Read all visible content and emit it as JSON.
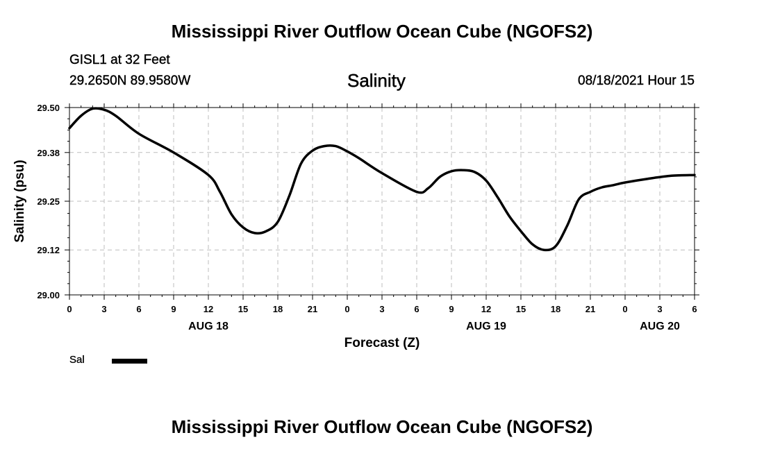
{
  "header": {
    "title": "Mississippi River Outflow Ocean Cube (NGOFS2)",
    "station": "GISL1 at 32 Feet",
    "coordinates": "29.2650N  89.9580W",
    "variable": "Salinity",
    "datetime": "08/18/2021 Hour 15"
  },
  "footer": {
    "title": "Mississippi River Outflow Ocean Cube (NGOFS2)"
  },
  "legend": {
    "label": "Sal",
    "color": "#000000"
  },
  "chart_data": {
    "type": "line",
    "title": "Salinity",
    "xlabel": "Forecast (Z)",
    "ylabel": "Salinity (psu)",
    "xlim": [
      0,
      54
    ],
    "ylim": [
      29.0,
      29.5
    ],
    "yticks": [
      29.0,
      29.12,
      29.25,
      29.38,
      29.5
    ],
    "ytick_labels": [
      "29.00",
      "29.12",
      "29.25",
      "29.38",
      "29.50"
    ],
    "xticks": [
      0,
      3,
      6,
      9,
      12,
      15,
      18,
      21,
      24,
      27,
      30,
      33,
      36,
      39,
      42,
      45,
      48,
      51,
      54
    ],
    "xtick_labels": [
      "0",
      "3",
      "6",
      "9",
      "12",
      "15",
      "18",
      "21",
      "0",
      "3",
      "6",
      "9",
      "12",
      "15",
      "18",
      "21",
      "0",
      "3",
      "6"
    ],
    "date_labels": [
      {
        "x": 12,
        "label": "AUG 18"
      },
      {
        "x": 36,
        "label": "AUG 19"
      },
      {
        "x": 51,
        "label": "AUG 20"
      }
    ],
    "grid": true,
    "series": [
      {
        "name": "Sal",
        "x": [
          0,
          1,
          2,
          3,
          4,
          6,
          9,
          12,
          13,
          14,
          15,
          16,
          17,
          18,
          19,
          20,
          21,
          22,
          23,
          24,
          25,
          27,
          30,
          31,
          32,
          33,
          34,
          35,
          36,
          37,
          38,
          39,
          40,
          41,
          42,
          43,
          44,
          45,
          46,
          47,
          48,
          50,
          52,
          54
        ],
        "y": [
          29.445,
          29.478,
          29.497,
          29.494,
          29.478,
          29.43,
          29.38,
          29.32,
          29.275,
          29.215,
          29.18,
          29.165,
          29.17,
          29.195,
          29.265,
          29.35,
          29.385,
          29.397,
          29.397,
          29.383,
          29.365,
          29.325,
          29.275,
          29.285,
          29.315,
          29.33,
          29.333,
          29.328,
          29.305,
          29.26,
          29.21,
          29.17,
          29.135,
          29.12,
          29.13,
          29.185,
          29.255,
          29.275,
          29.287,
          29.293,
          29.3,
          29.31,
          29.318,
          29.32
        ]
      }
    ]
  }
}
